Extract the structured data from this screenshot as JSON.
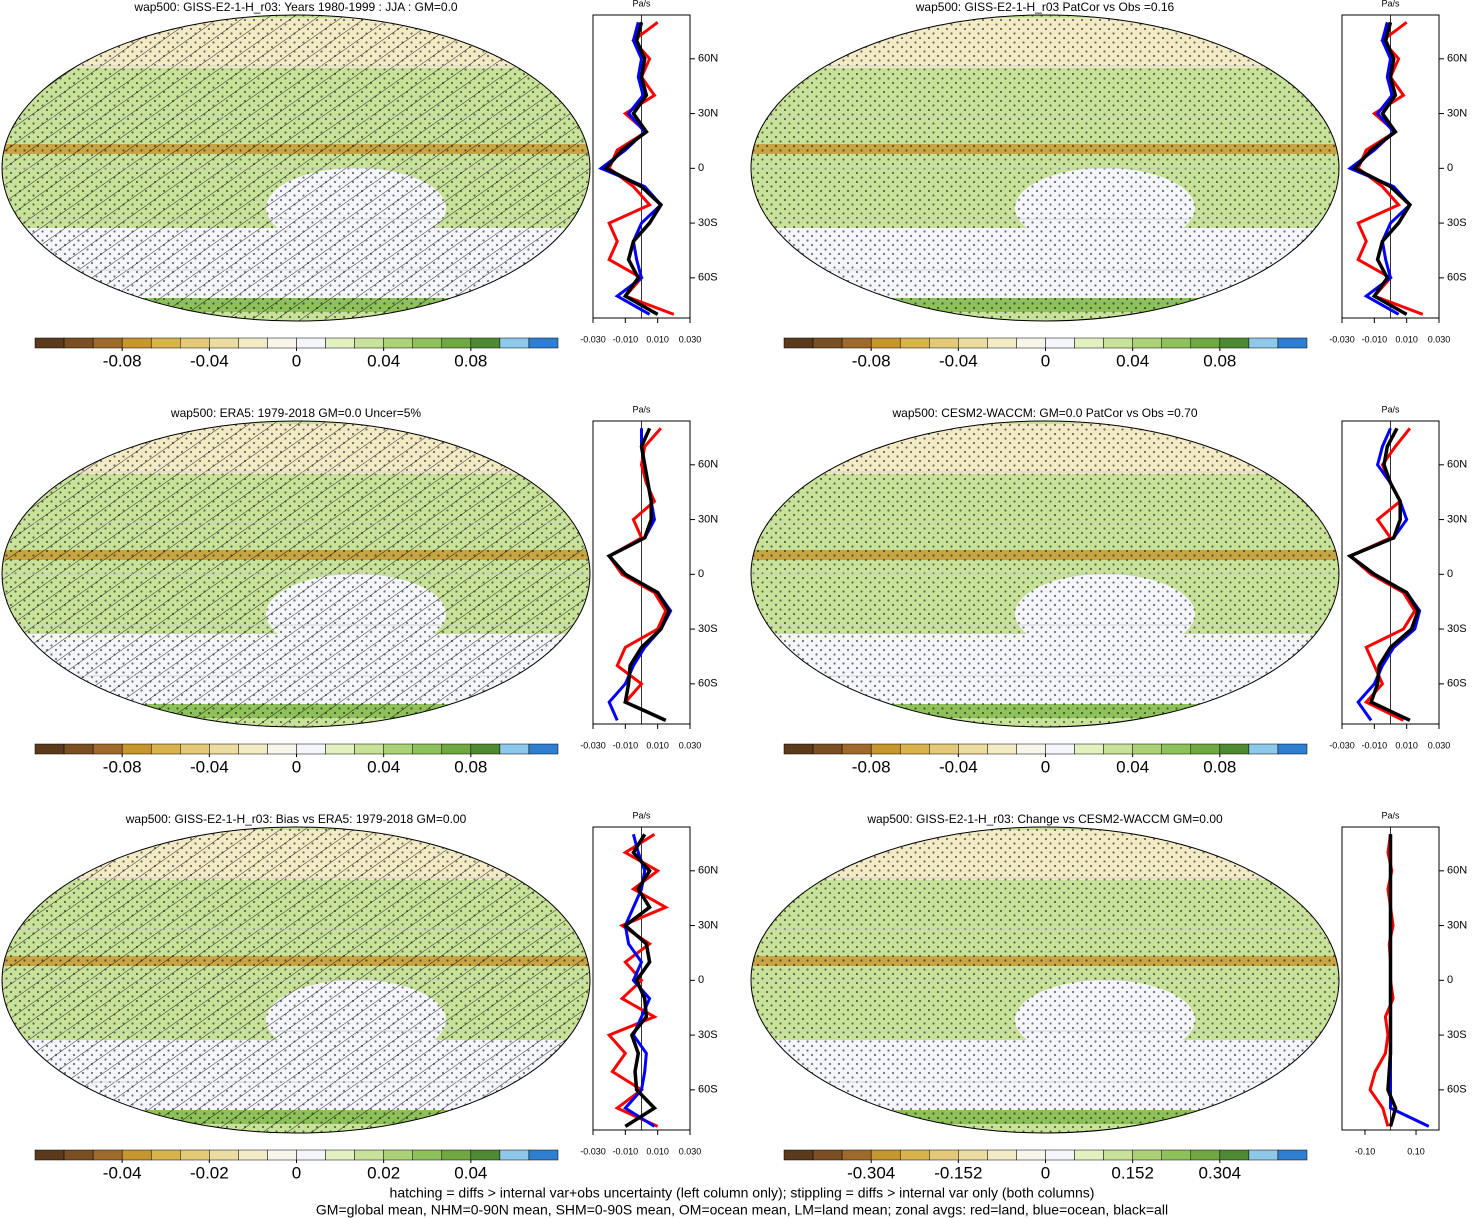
{
  "chart_data": [
    {
      "type": "map",
      "title": "wap500: GISS-E2-1-H_r03: Years 1980-1999 : JJA : GM=0.0",
      "hatching": true,
      "colorbar": {
        "lim": [
          -0.12,
          0.12
        ],
        "ticks": [
          -0.08,
          -0.04,
          0,
          0.04,
          0.08
        ]
      },
      "zonal": {
        "type": "line",
        "unit": "Pa/s",
        "xlim": [
          -0.03,
          0.03
        ],
        "ylim": [
          -82,
          84
        ],
        "xticks": [
          {
            "value": -0.03,
            "label": "-0.030"
          },
          {
            "value": -0.01,
            "label": "-0.010"
          },
          {
            "value": 0.01,
            "label": "0.010"
          },
          {
            "value": 0.03,
            "label": "0.030"
          }
        ],
        "yticks": [
          {
            "value": 60,
            "label": "60N"
          },
          {
            "value": 30,
            "label": "30N"
          },
          0,
          {
            "value": -30,
            "label": "30S"
          },
          {
            "value": -60,
            "label": "60S"
          }
        ],
        "y": [
          80,
          70,
          60,
          50,
          40,
          30,
          20,
          10,
          0,
          -10,
          -20,
          -30,
          -40,
          -50,
          -60,
          -70,
          -80
        ],
        "series": [
          {
            "color": "#ff0000",
            "values": [
              0.01,
              -0.005,
              0.005,
              0.0,
              0.008,
              -0.01,
              0.003,
              -0.015,
              -0.02,
              -0.005,
              0.005,
              -0.02,
              -0.015,
              -0.02,
              0.0,
              -0.01,
              0.02
            ]
          },
          {
            "color": "#0000ff",
            "values": [
              -0.002,
              -0.005,
              0.0,
              -0.002,
              0.001,
              -0.008,
              0.002,
              -0.01,
              -0.025,
              0.002,
              0.012,
              0.0,
              -0.005,
              -0.003,
              0.0,
              -0.015,
              0.005
            ]
          },
          {
            "color": "#000000",
            "values": [
              0.0,
              -0.003,
              0.002,
              0.0,
              0.003,
              -0.005,
              0.003,
              -0.012,
              -0.022,
              0.0,
              0.012,
              0.005,
              -0.005,
              -0.008,
              -0.002,
              -0.01,
              0.01
            ]
          }
        ]
      }
    },
    {
      "type": "map",
      "title": "wap500: GISS-E2-1-H_r03 PatCor vs Obs =0.16",
      "hatching": false,
      "colorbar": {
        "lim": [
          -0.12,
          0.12
        ],
        "ticks": [
          -0.08,
          -0.04,
          0,
          0.04,
          0.08
        ]
      },
      "zonal": {
        "type": "line",
        "unit": "Pa/s",
        "xlim": [
          -0.03,
          0.03
        ],
        "ylim": [
          -82,
          84
        ],
        "xticks": [
          {
            "value": -0.03,
            "label": "-0.030"
          },
          {
            "value": -0.01,
            "label": "-0.010"
          },
          {
            "value": 0.01,
            "label": "0.010"
          },
          {
            "value": 0.03,
            "label": "0.030"
          }
        ],
        "yticks": [
          {
            "value": 60,
            "label": "60N"
          },
          {
            "value": 30,
            "label": "30N"
          },
          0,
          {
            "value": -30,
            "label": "30S"
          },
          {
            "value": -60,
            "label": "60S"
          }
        ],
        "y": [
          80,
          70,
          60,
          50,
          40,
          30,
          20,
          10,
          0,
          -10,
          -20,
          -30,
          -40,
          -50,
          -60,
          -70,
          -80
        ],
        "series": [
          {
            "color": "#ff0000",
            "values": [
              0.01,
              -0.005,
              0.005,
              0.0,
              0.008,
              -0.01,
              0.003,
              -0.015,
              -0.02,
              -0.005,
              0.005,
              -0.02,
              -0.015,
              -0.02,
              0.0,
              -0.01,
              0.02
            ]
          },
          {
            "color": "#0000ff",
            "values": [
              -0.002,
              -0.005,
              0.0,
              -0.002,
              0.001,
              -0.008,
              0.002,
              -0.01,
              -0.025,
              0.002,
              0.012,
              0.0,
              -0.005,
              -0.003,
              0.0,
              -0.015,
              0.005
            ]
          },
          {
            "color": "#000000",
            "values": [
              0.0,
              -0.003,
              0.002,
              0.0,
              0.003,
              -0.005,
              0.003,
              -0.012,
              -0.022,
              0.0,
              0.012,
              0.005,
              -0.005,
              -0.008,
              -0.002,
              -0.01,
              0.01
            ]
          }
        ]
      }
    },
    {
      "type": "map",
      "title": "wap500: ERA5: 1979-2018 GM=0.0 Uncer=5%",
      "hatching": true,
      "colorbar": {
        "lim": [
          -0.12,
          0.12
        ],
        "ticks": [
          -0.08,
          -0.04,
          0,
          0.04,
          0.08
        ]
      },
      "zonal": {
        "type": "line",
        "unit": "Pa/s",
        "xlim": [
          -0.03,
          0.03
        ],
        "ylim": [
          -82,
          84
        ],
        "xticks": [
          {
            "value": -0.03,
            "label": "-0.030"
          },
          {
            "value": -0.01,
            "label": "-0.010"
          },
          {
            "value": 0.01,
            "label": "0.010"
          },
          {
            "value": 0.03,
            "label": "0.030"
          }
        ],
        "yticks": [
          {
            "value": 60,
            "label": "60N"
          },
          {
            "value": 30,
            "label": "30N"
          },
          0,
          {
            "value": -30,
            "label": "30S"
          },
          {
            "value": -60,
            "label": "60S"
          }
        ],
        "y": [
          80,
          70,
          60,
          50,
          40,
          30,
          20,
          10,
          0,
          -10,
          -20,
          -30,
          -40,
          -50,
          -60,
          -70,
          -80
        ],
        "series": [
          {
            "color": "#ff0000",
            "values": [
              0.012,
              0.002,
              0.0,
              0.003,
              0.008,
              -0.005,
              0.0,
              -0.02,
              -0.012,
              0.008,
              0.015,
              0.01,
              -0.01,
              -0.015,
              0.0,
              -0.01,
              0.015
            ]
          },
          {
            "color": "#0000ff",
            "values": [
              0.0,
              0.0,
              0.002,
              0.004,
              0.006,
              0.008,
              0.002,
              -0.02,
              -0.01,
              0.01,
              0.018,
              0.012,
              0.002,
              -0.005,
              -0.01,
              -0.02,
              -0.015
            ]
          },
          {
            "color": "#000000",
            "values": [
              0.005,
              0.0,
              0.002,
              0.004,
              0.006,
              0.006,
              0.002,
              -0.02,
              -0.01,
              0.01,
              0.017,
              0.012,
              0.0,
              -0.007,
              -0.008,
              -0.01,
              0.015
            ]
          }
        ]
      }
    },
    {
      "type": "map",
      "title": "wap500: CESM2-WACCM: GM=0.0 PatCor vs Obs =0.70",
      "hatching": false,
      "colorbar": {
        "lim": [
          -0.12,
          0.12
        ],
        "ticks": [
          -0.08,
          -0.04,
          0,
          0.04,
          0.08
        ]
      },
      "zonal": {
        "type": "line",
        "unit": "Pa/s",
        "xlim": [
          -0.03,
          0.03
        ],
        "ylim": [
          -82,
          84
        ],
        "xticks": [
          {
            "value": -0.03,
            "label": "-0.030"
          },
          {
            "value": -0.01,
            "label": "-0.010"
          },
          {
            "value": 0.01,
            "label": "0.010"
          },
          {
            "value": 0.03,
            "label": "0.030"
          }
        ],
        "yticks": [
          {
            "value": 60,
            "label": "60N"
          },
          {
            "value": 30,
            "label": "30N"
          },
          0,
          {
            "value": -30,
            "label": "30S"
          },
          {
            "value": -60,
            "label": "60S"
          }
        ],
        "y": [
          80,
          70,
          60,
          50,
          40,
          30,
          20,
          10,
          0,
          -10,
          -20,
          -30,
          -40,
          -50,
          -60,
          -70,
          -80
        ],
        "series": [
          {
            "color": "#ff0000",
            "values": [
              0.012,
              0.003,
              -0.005,
              0.0,
              0.006,
              -0.008,
              0.0,
              -0.025,
              -0.012,
              0.008,
              0.015,
              0.008,
              -0.015,
              -0.01,
              -0.005,
              -0.015,
              0.008
            ]
          },
          {
            "color": "#0000ff",
            "values": [
              0.0,
              -0.005,
              -0.008,
              0.0,
              0.006,
              0.01,
              0.002,
              -0.025,
              -0.01,
              0.01,
              0.018,
              0.015,
              0.002,
              -0.005,
              -0.01,
              -0.02,
              -0.012
            ]
          },
          {
            "color": "#000000",
            "values": [
              0.004,
              -0.002,
              -0.004,
              0.0,
              0.006,
              0.006,
              0.002,
              -0.025,
              -0.01,
              0.01,
              0.017,
              0.013,
              0.0,
              -0.007,
              -0.008,
              -0.012,
              0.012
            ]
          }
        ]
      }
    },
    {
      "type": "map",
      "title": "wap500: GISS-E2-1-H_r03: Bias vs ERA5: 1979-2018 GM=0.00",
      "hatching": true,
      "colorbar": {
        "lim": [
          -0.06,
          0.06
        ],
        "ticks": [
          -0.04,
          -0.02,
          0,
          0.02,
          0.04
        ]
      },
      "zonal": {
        "type": "line",
        "unit": "Pa/s",
        "xlim": [
          -0.03,
          0.03
        ],
        "ylim": [
          -82,
          84
        ],
        "xticks": [
          {
            "value": -0.03,
            "label": "-0.030"
          },
          {
            "value": -0.01,
            "label": "-0.010"
          },
          {
            "value": 0.01,
            "label": "0.010"
          },
          {
            "value": 0.03,
            "label": "0.030"
          }
        ],
        "yticks": [
          {
            "value": 60,
            "label": "60N"
          },
          {
            "value": 30,
            "label": "30N"
          },
          0,
          {
            "value": -30,
            "label": "30S"
          },
          {
            "value": -60,
            "label": "60S"
          }
        ],
        "y": [
          80,
          70,
          60,
          50,
          40,
          30,
          20,
          10,
          0,
          -10,
          -20,
          -30,
          -40,
          -50,
          -60,
          -70,
          -80
        ],
        "series": [
          {
            "color": "#ff0000",
            "values": [
              0.008,
              -0.01,
              0.01,
              -0.005,
              0.015,
              -0.012,
              0.005,
              -0.01,
              0.0,
              -0.012,
              0.008,
              -0.02,
              -0.01,
              -0.018,
              0.0,
              -0.015,
              0.01
            ]
          },
          {
            "color": "#0000ff",
            "values": [
              -0.005,
              -0.002,
              0.002,
              0.0,
              -0.005,
              -0.01,
              -0.008,
              0.0,
              -0.005,
              0.005,
              0.0,
              -0.005,
              0.003,
              0.002,
              0.0,
              -0.01,
              0.008
            ]
          },
          {
            "color": "#000000",
            "values": [
              0.002,
              -0.005,
              0.005,
              -0.002,
              0.005,
              -0.01,
              0.003,
              0.005,
              -0.003,
              0.002,
              0.003,
              -0.006,
              -0.002,
              -0.004,
              -0.003,
              0.008,
              -0.01
            ]
          }
        ]
      }
    },
    {
      "type": "map",
      "title": "wap500: GISS-E2-1-H_r03: Change vs CESM2-WACCM GM=0.00",
      "hatching": false,
      "colorbar": {
        "lim": [
          -0.456,
          0.456
        ],
        "ticks": [
          -0.304,
          -0.152,
          0,
          0.152,
          0.304
        ]
      },
      "zonal": {
        "type": "line",
        "unit": "Pa/s",
        "xlim": [
          -0.19,
          0.19
        ],
        "ylim": [
          -82,
          84
        ],
        "xticks": [
          {
            "value": -0.1,
            "label": "-0.10"
          },
          {
            "value": 0.1,
            "label": "0.10"
          }
        ],
        "yticks": [
          {
            "value": 60,
            "label": "60N"
          },
          {
            "value": 30,
            "label": "30N"
          },
          0,
          {
            "value": -30,
            "label": "30S"
          },
          {
            "value": -60,
            "label": "60S"
          }
        ],
        "y": [
          80,
          70,
          60,
          50,
          40,
          30,
          20,
          10,
          0,
          -10,
          -20,
          -30,
          -40,
          -50,
          -60,
          -70,
          -80
        ],
        "series": [
          {
            "color": "#ff0000",
            "values": [
              0.0,
              -0.01,
              0.005,
              -0.01,
              0.0,
              0.01,
              -0.005,
              0.0,
              0.0,
              0.01,
              -0.02,
              -0.01,
              -0.02,
              -0.06,
              -0.08,
              -0.03,
              -0.01
            ]
          },
          {
            "color": "#0000ff",
            "values": [
              0.0,
              0.0,
              0.0,
              0.0,
              0.0,
              0.0,
              0.0,
              0.0,
              0.0,
              0.0,
              0.0,
              0.0,
              0.0,
              0.0,
              0.0,
              0.0,
              0.15
            ]
          },
          {
            "color": "#000000",
            "values": [
              0.0,
              0.0,
              0.0,
              0.0,
              0.0,
              0.0,
              0.0,
              0.0,
              0.0,
              0.0,
              0.0,
              0.0,
              0.0,
              -0.005,
              -0.01,
              0.02,
              0.0
            ]
          }
        ]
      }
    }
  ],
  "colorbar_colors": [
    "#5a3a1a",
    "#7b4f24",
    "#a06a2c",
    "#c8962e",
    "#d9b34c",
    "#e3c978",
    "#ecdca0",
    "#f3ebc6",
    "#f8f6ea",
    "#f4f6fb",
    "#e3f0c0",
    "#c9e29a",
    "#abd277",
    "#8fc15a",
    "#6fa841",
    "#4d8a31",
    "#8ec8ea",
    "#2f7fd0"
  ],
  "footer": [
    "hatching = diffs > internal var+obs uncertainty (left column only); stippling = diffs > internal var only (both columns)",
    "GM=global mean, NHM=0-90N mean, SHM=0-90S mean, OM=ocean mean, LM=land mean; zonal avgs: red=land, blue=ocean, black=all"
  ]
}
